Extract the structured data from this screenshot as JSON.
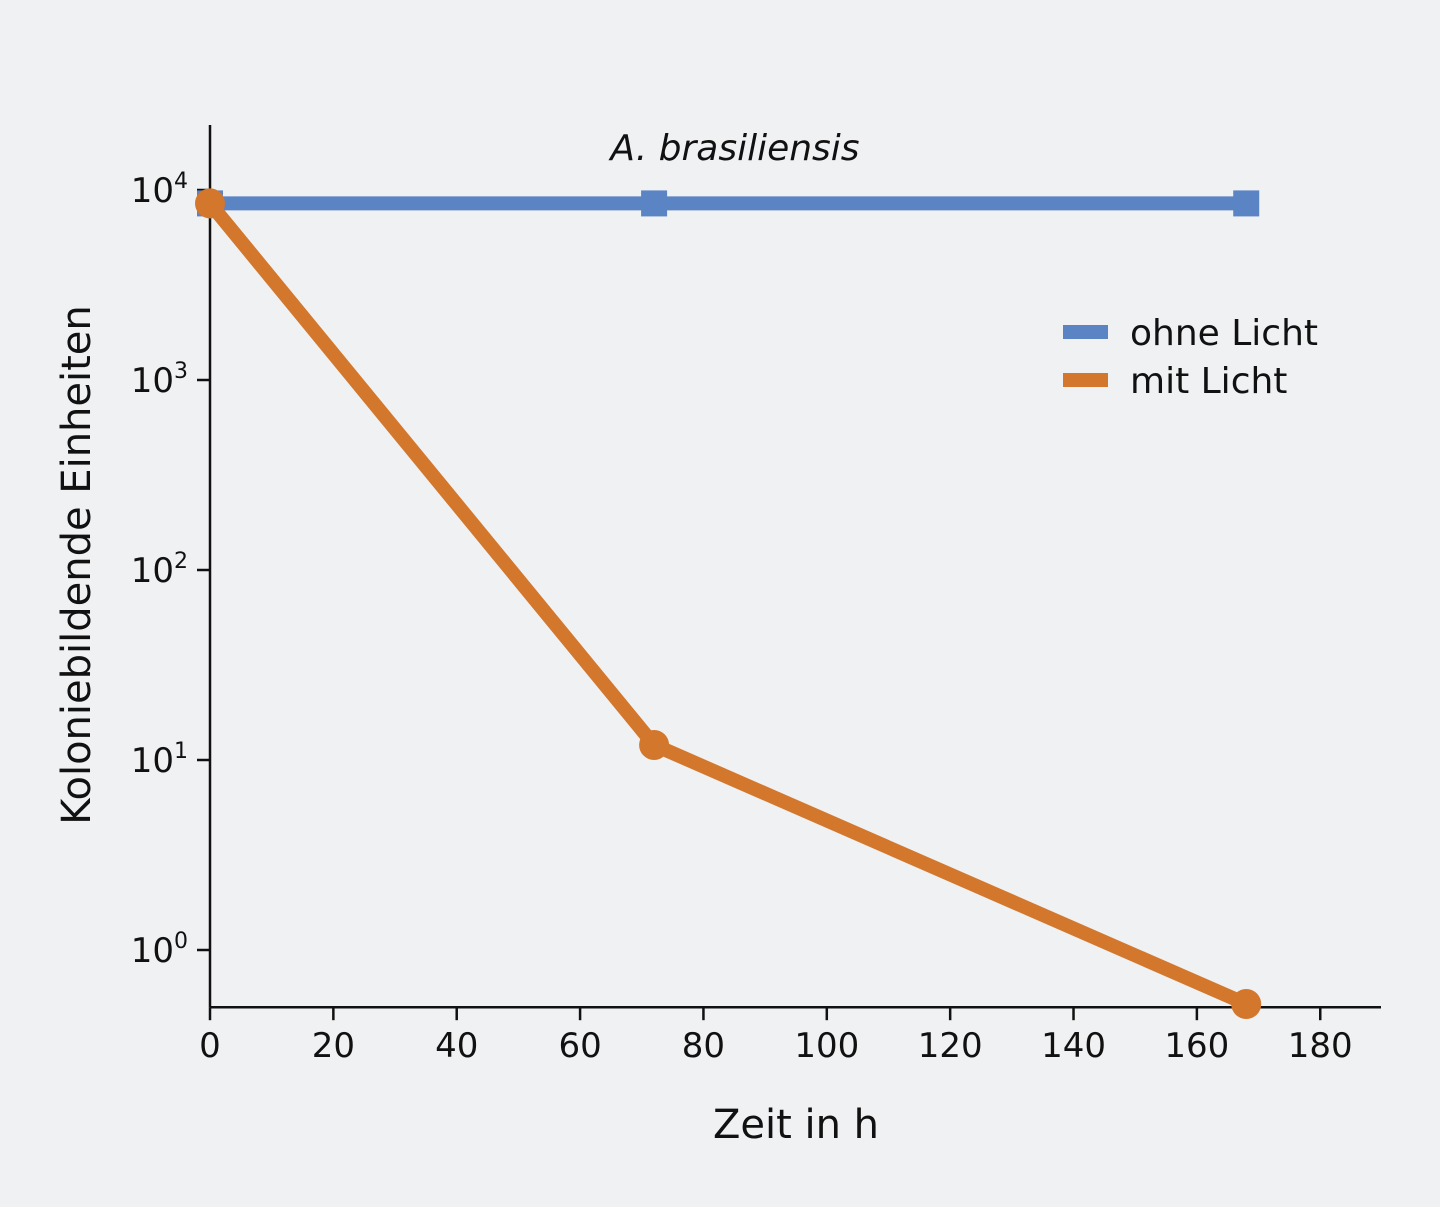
{
  "colors": {
    "background": "#f0f1f3",
    "ohne_licht": "#5b84c4",
    "mit_licht": "#d3772d",
    "axis": "#111111"
  },
  "chart_data": {
    "type": "line",
    "title": "A. brasiliensis",
    "xlabel": "Zeit in h",
    "ylabel": "Koloniebildende Einheiten",
    "y_scale": "log",
    "xlim": [
      0,
      190
    ],
    "ylim": [
      0.5,
      20000
    ],
    "x_ticks": [
      0,
      20,
      40,
      60,
      80,
      100,
      120,
      140,
      160,
      180
    ],
    "x_tick_labels": [
      "0",
      "20",
      "40",
      "60",
      "80",
      "100",
      "120",
      "140",
      "160",
      "180"
    ],
    "y_ticks": [
      {
        "value": 1,
        "base": "10",
        "exp": "0"
      },
      {
        "value": 10,
        "base": "10",
        "exp": "1"
      },
      {
        "value": 100,
        "base": "10",
        "exp": "2"
      },
      {
        "value": 1000,
        "base": "10",
        "exp": "3"
      },
      {
        "value": 10000,
        "base": "10",
        "exp": "4"
      }
    ],
    "legend_position": "right",
    "series": [
      {
        "name": "ohne Licht",
        "marker": "square",
        "color": "#5b84c4",
        "x": [
          0,
          72,
          168
        ],
        "y": [
          8500,
          8500,
          8500
        ]
      },
      {
        "name": "mit Licht",
        "marker": "circle",
        "color": "#d3772d",
        "x": [
          0,
          72,
          168
        ],
        "y": [
          8500,
          12,
          0.52
        ]
      }
    ]
  }
}
